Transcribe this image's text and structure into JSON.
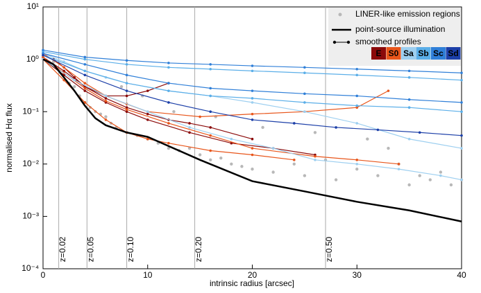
{
  "chart_data": {
    "type": "line",
    "xlabel": "intrinsic radius [arcsec]",
    "ylabel": "normalised Hα flux",
    "xlim": [
      0,
      40
    ],
    "ylim": [
      0.0001,
      10
    ],
    "log_y": true,
    "xticks": [
      0,
      10,
      20,
      30,
      40
    ],
    "yticks": [
      {
        "value": 0.0001,
        "label": "10⁻⁴"
      },
      {
        "value": 0.001,
        "label": "10⁻³"
      },
      {
        "value": 0.01,
        "label": "10⁻²"
      },
      {
        "value": 0.1,
        "label": "10⁻¹"
      },
      {
        "value": 1,
        "label": "10⁰"
      },
      {
        "value": 10,
        "label": "10¹"
      }
    ],
    "redshift_markers": [
      {
        "x": 1.5,
        "label": "z=0.02"
      },
      {
        "x": 4.2,
        "label": "z=0.05"
      },
      {
        "x": 8.0,
        "label": "z=0.10"
      },
      {
        "x": 14.5,
        "label": "z=0.20"
      },
      {
        "x": 27.0,
        "label": "z=0.50"
      }
    ],
    "scatter": {
      "name": "LINER-like emission regions",
      "color": "#b8b8b8",
      "x": [
        1,
        2,
        2.5,
        3,
        3.5,
        4,
        4.5,
        5,
        5.5,
        6,
        6.5,
        7,
        8,
        9,
        10,
        11,
        12,
        13,
        14,
        15,
        16,
        17,
        18,
        19,
        20,
        22,
        24,
        25,
        27,
        28,
        30,
        32,
        34,
        35,
        36,
        37,
        38,
        39,
        40,
        7.5,
        9.5,
        12.5,
        16.5,
        21,
        26,
        31,
        33
      ],
      "values": [
        0.9,
        0.5,
        0.35,
        0.3,
        0.2,
        0.15,
        0.12,
        0.1,
        0.09,
        0.08,
        0.06,
        0.05,
        0.04,
        0.035,
        0.03,
        0.025,
        0.02,
        0.018,
        0.02,
        0.015,
        0.012,
        0.013,
        0.01,
        0.009,
        0.008,
        0.007,
        0.01,
        0.006,
        0.012,
        0.005,
        0.008,
        0.006,
        0.01,
        0.004,
        0.006,
        0.005,
        0.007,
        0.004,
        0.005,
        0.3,
        0.2,
        0.1,
        0.08,
        0.05,
        0.04,
        0.03,
        0.02
      ]
    },
    "point_source": {
      "name": "point-source illumination",
      "color": "#000000",
      "x": [
        0,
        1,
        2,
        3,
        4,
        5,
        6,
        8,
        10,
        12,
        15,
        20,
        25,
        30,
        35,
        40
      ],
      "values": [
        1.0,
        0.8,
        0.45,
        0.25,
        0.13,
        0.075,
        0.055,
        0.04,
        0.033,
        0.022,
        0.012,
        0.0047,
        0.003,
        0.0019,
        0.0013,
        0.0008
      ]
    },
    "profiles_label": "smoothed profiles",
    "classes": [
      {
        "name": "E",
        "color": "#8b0a0a",
        "profiles": [
          {
            "x": [
              0,
              1,
              2,
              3,
              4,
              6,
              8,
              10,
              12
            ],
            "values": [
              1.2,
              1.0,
              0.7,
              0.45,
              0.3,
              0.2,
              0.2,
              0.25,
              0.35
            ]
          },
          {
            "x": [
              0,
              2,
              4,
              6,
              8,
              10,
              12,
              14,
              16,
              20
            ],
            "values": [
              1.1,
              0.6,
              0.3,
              0.18,
              0.12,
              0.09,
              0.07,
              0.06,
              0.05,
              0.03
            ]
          },
          {
            "x": [
              0,
              2,
              4,
              6,
              8,
              10,
              14,
              18,
              22,
              26
            ],
            "values": [
              1.0,
              0.5,
              0.25,
              0.15,
              0.1,
              0.07,
              0.04,
              0.025,
              0.02,
              0.015
            ]
          }
        ]
      },
      {
        "name": "S0",
        "color": "#e8551a",
        "profiles": [
          {
            "x": [
              0,
              2,
              4,
              6,
              8,
              10,
              15,
              20,
              25,
              30,
              33
            ],
            "values": [
              1.3,
              0.7,
              0.35,
              0.2,
              0.14,
              0.1,
              0.08,
              0.09,
              0.1,
              0.12,
              0.25
            ]
          },
          {
            "x": [
              0,
              2,
              4,
              6,
              8,
              10,
              12,
              16,
              20,
              24
            ],
            "values": [
              1.0,
              0.4,
              0.15,
              0.07,
              0.04,
              0.03,
              0.025,
              0.018,
              0.015,
              0.012
            ]
          },
          {
            "x": [
              0,
              2,
              4,
              6,
              8,
              12,
              16,
              20,
              26,
              30,
              34
            ],
            "values": [
              1.1,
              0.55,
              0.28,
              0.16,
              0.11,
              0.06,
              0.035,
              0.02,
              0.014,
              0.012,
              0.01
            ]
          }
        ]
      },
      {
        "name": "Sa",
        "color": "#9dcff0",
        "profiles": [
          {
            "x": [
              0,
              2,
              4,
              6,
              8,
              12,
              16,
              20,
              25,
              30,
              35,
              40
            ],
            "values": [
              1.3,
              0.9,
              0.6,
              0.45,
              0.35,
              0.25,
              0.2,
              0.15,
              0.1,
              0.06,
              0.03,
              0.02
            ]
          },
          {
            "x": [
              0,
              3,
              6,
              10,
              14,
              18,
              22,
              26,
              30,
              34,
              38,
              40
            ],
            "values": [
              1.0,
              0.4,
              0.2,
              0.1,
              0.05,
              0.03,
              0.02,
              0.012,
              0.01,
              0.008,
              0.006,
              0.005
            ]
          }
        ]
      },
      {
        "name": "Sb",
        "color": "#5aaee8",
        "profiles": [
          {
            "x": [
              0,
              4,
              8,
              12,
              16,
              20,
              25,
              30,
              35,
              40
            ],
            "values": [
              1.4,
              1.0,
              0.8,
              0.7,
              0.65,
              0.6,
              0.55,
              0.5,
              0.45,
              0.4
            ]
          },
          {
            "x": [
              0,
              4,
              8,
              12,
              16,
              20,
              25,
              30,
              35,
              40
            ],
            "values": [
              1.2,
              0.6,
              0.35,
              0.25,
              0.2,
              0.18,
              0.15,
              0.13,
              0.12,
              0.1
            ]
          }
        ]
      },
      {
        "name": "Sc",
        "color": "#2f7fd8",
        "profiles": [
          {
            "x": [
              0,
              4,
              8,
              12,
              16,
              20,
              25,
              30,
              35,
              40
            ],
            "values": [
              1.5,
              1.1,
              0.95,
              0.85,
              0.8,
              0.75,
              0.7,
              0.65,
              0.6,
              0.55
            ]
          },
          {
            "x": [
              0,
              4,
              8,
              12,
              16,
              20,
              25,
              30,
              35,
              40
            ],
            "values": [
              1.3,
              0.8,
              0.5,
              0.35,
              0.28,
              0.25,
              0.22,
              0.2,
              0.17,
              0.15
            ]
          }
        ]
      },
      {
        "name": "Sd",
        "color": "#1c3fa8",
        "profiles": [
          {
            "x": [
              0,
              4,
              8,
              12,
              16,
              20,
              24,
              28,
              32,
              36,
              40
            ],
            "values": [
              1.2,
              0.5,
              0.25,
              0.15,
              0.1,
              0.07,
              0.06,
              0.05,
              0.045,
              0.04,
              0.035
            ]
          }
        ]
      }
    ]
  }
}
